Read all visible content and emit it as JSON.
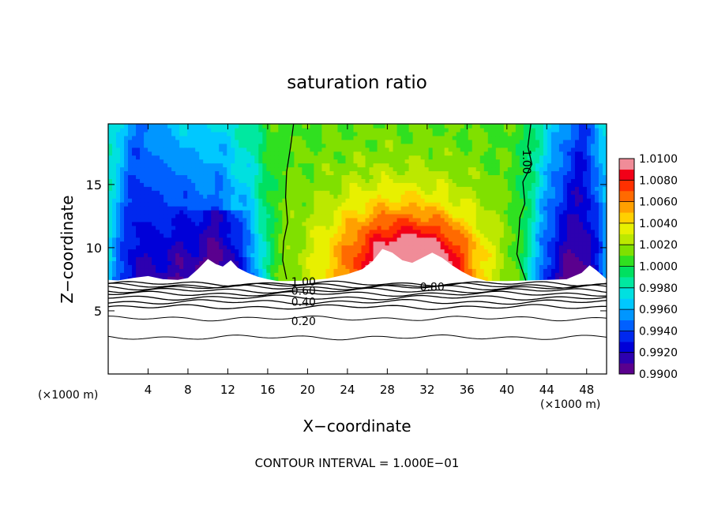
{
  "chart_data": {
    "type": "heatmap",
    "title": "saturation ratio",
    "xlabel": "X−coordinate",
    "ylabel": "Z−coordinate",
    "x_unit_left": "(×1000 m)",
    "x_unit_right": "(×1000 m)",
    "footer": "CONTOUR INTERVAL = 1.000E−01",
    "xlim": [
      0,
      50
    ],
    "ylim": [
      0,
      19.8
    ],
    "x_ticks": [
      "4",
      "8",
      "12",
      "16",
      "20",
      "24",
      "28",
      "32",
      "36",
      "40",
      "44",
      "48"
    ],
    "x_tick_values": [
      4,
      8,
      12,
      16,
      20,
      24,
      28,
      32,
      36,
      40,
      44,
      48
    ],
    "y_ticks": [
      "5",
      "10",
      "15"
    ],
    "y_tick_values": [
      5,
      10,
      15
    ],
    "colorbar": {
      "min": 0.99,
      "max": 1.01,
      "labels": [
        "1.0100",
        "1.0080",
        "1.0060",
        "1.0040",
        "1.0020",
        "1.0000",
        "0.9980",
        "0.9960",
        "0.9940",
        "0.9920",
        "0.9900"
      ],
      "label_values": [
        1.01,
        1.008,
        1.006,
        1.004,
        1.002,
        1.0,
        0.998,
        0.996,
        0.994,
        0.992,
        0.99
      ]
    },
    "contour_labels": [
      {
        "text": "1.00",
        "x": 19.6,
        "z": 7.3
      },
      {
        "text": "0.60",
        "x": 19.6,
        "z": 6.6
      },
      {
        "text": "0.40",
        "x": 19.6,
        "z": 5.7
      },
      {
        "text": "0.20",
        "x": 19.6,
        "z": 4.2
      },
      {
        "text": "0.80",
        "x": 32.5,
        "z": 6.9
      },
      {
        "text": "1.00",
        "x": 42.0,
        "z": 16.8
      }
    ],
    "contour_lines_z": [
      7.15,
      7.0,
      6.85,
      6.6,
      6.35,
      6.05,
      5.7,
      5.3,
      4.4,
      2.9
    ]
  }
}
